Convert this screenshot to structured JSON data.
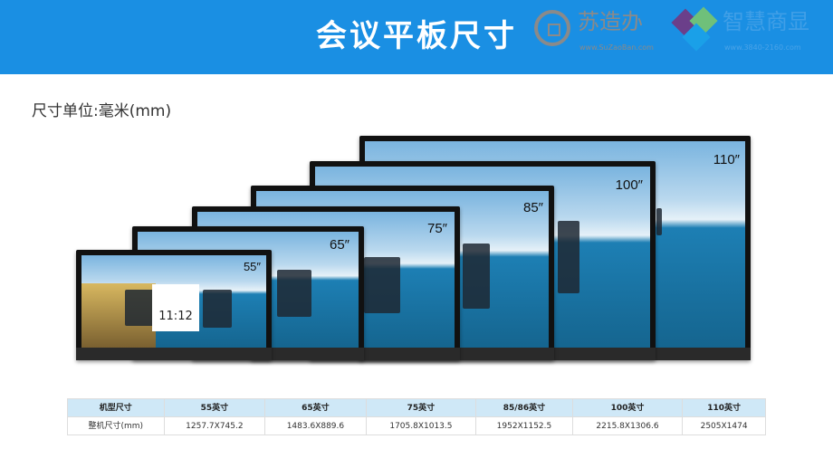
{
  "header": {
    "title": "会议平板尺寸",
    "logos": [
      {
        "name": "苏造办",
        "url_text": "www.SuZaoBan.com"
      },
      {
        "name": "智慧商显",
        "url_text": "www.3840-2160.com"
      }
    ],
    "color": "#1a8fe3"
  },
  "subtitle": "尺寸单位:毫米(mm)",
  "screens": [
    {
      "label": "110″"
    },
    {
      "label": "100″"
    },
    {
      "label": "85″"
    },
    {
      "label": "75″"
    },
    {
      "label": "65″"
    },
    {
      "label": "55″",
      "clock": "11:12"
    }
  ],
  "table": {
    "headers": [
      "机型尺寸",
      "55英寸",
      "65英寸",
      "75英寸",
      "85/86英寸",
      "100英寸",
      "110英寸"
    ],
    "row": [
      "整机尺寸(mm)",
      "1257.7X745.2",
      "1483.6X889.6",
      "1705.8X1013.5",
      "1952X1152.5",
      "2215.8X1306.6",
      "2505X1474"
    ]
  }
}
